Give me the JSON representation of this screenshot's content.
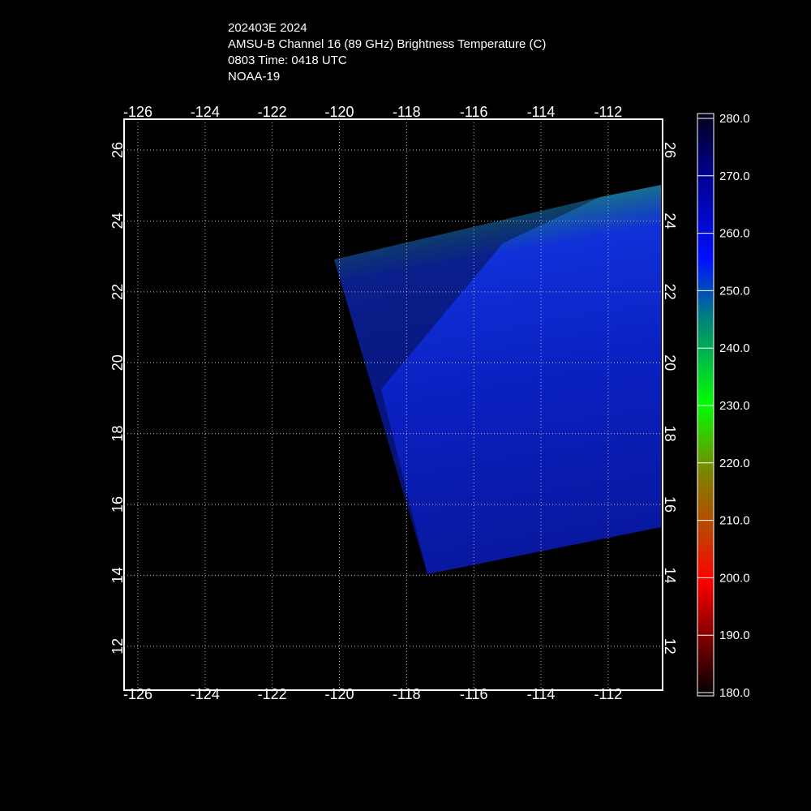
{
  "header": {
    "lines": [
      "202403E 2024",
      "AMSU-B Channel 16 (89 GHz) Brightness Temperature (C)",
      "0803 Time: 0418 UTC",
      "NOAA-19"
    ]
  },
  "map": {
    "lon_range": [
      -126.41,
      -110.38
    ],
    "lat_range": [
      10.76,
      26.87
    ],
    "lon_ticks": [
      -126,
      -124,
      -122,
      -120,
      -118,
      -116,
      -114,
      -112
    ],
    "lat_ticks": [
      12,
      14,
      16,
      18,
      20,
      22,
      24,
      26
    ]
  },
  "colorbar": {
    "ticks": [
      {
        "value": 280,
        "label": "280.0"
      },
      {
        "value": 270,
        "label": "270.0"
      },
      {
        "value": 260,
        "label": "260.0"
      },
      {
        "value": 250,
        "label": "250.0"
      },
      {
        "value": 240,
        "label": "240.0"
      },
      {
        "value": 230,
        "label": "230.0"
      },
      {
        "value": 220,
        "label": "220.0"
      },
      {
        "value": 210,
        "label": "210.0"
      },
      {
        "value": 200,
        "label": "200.0"
      },
      {
        "value": 190,
        "label": "190.0"
      },
      {
        "value": 180,
        "label": "180.0"
      }
    ]
  }
}
